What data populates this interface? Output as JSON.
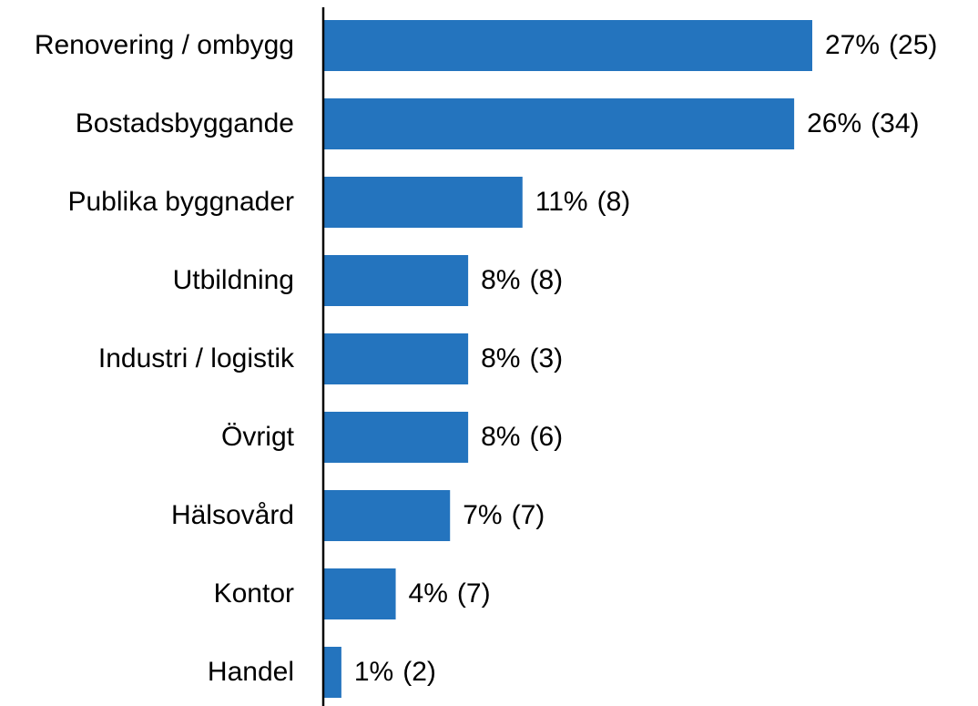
{
  "chart_data": {
    "type": "barh",
    "categories": [
      "Renovering / ombygg",
      "Bostadsbyggande",
      "Publika byggnader",
      "Utbildning",
      "Industri / logistik",
      "Övrigt",
      "Hälsovård",
      "Kontor",
      "Handel"
    ],
    "values": [
      27,
      26,
      11,
      8,
      8,
      8,
      7,
      4,
      1
    ],
    "value_labels": [
      "27%",
      "26%",
      "11%",
      "8%",
      "8%",
      "8%",
      "7%",
      "4%",
      "1%"
    ],
    "count_labels": [
      "(25)",
      "(34)",
      "(8)",
      "(8)",
      "(3)",
      "(6)",
      "(7)",
      "(7)",
      "(2)"
    ],
    "color": "#2474be",
    "xlim": [
      0,
      27
    ]
  }
}
